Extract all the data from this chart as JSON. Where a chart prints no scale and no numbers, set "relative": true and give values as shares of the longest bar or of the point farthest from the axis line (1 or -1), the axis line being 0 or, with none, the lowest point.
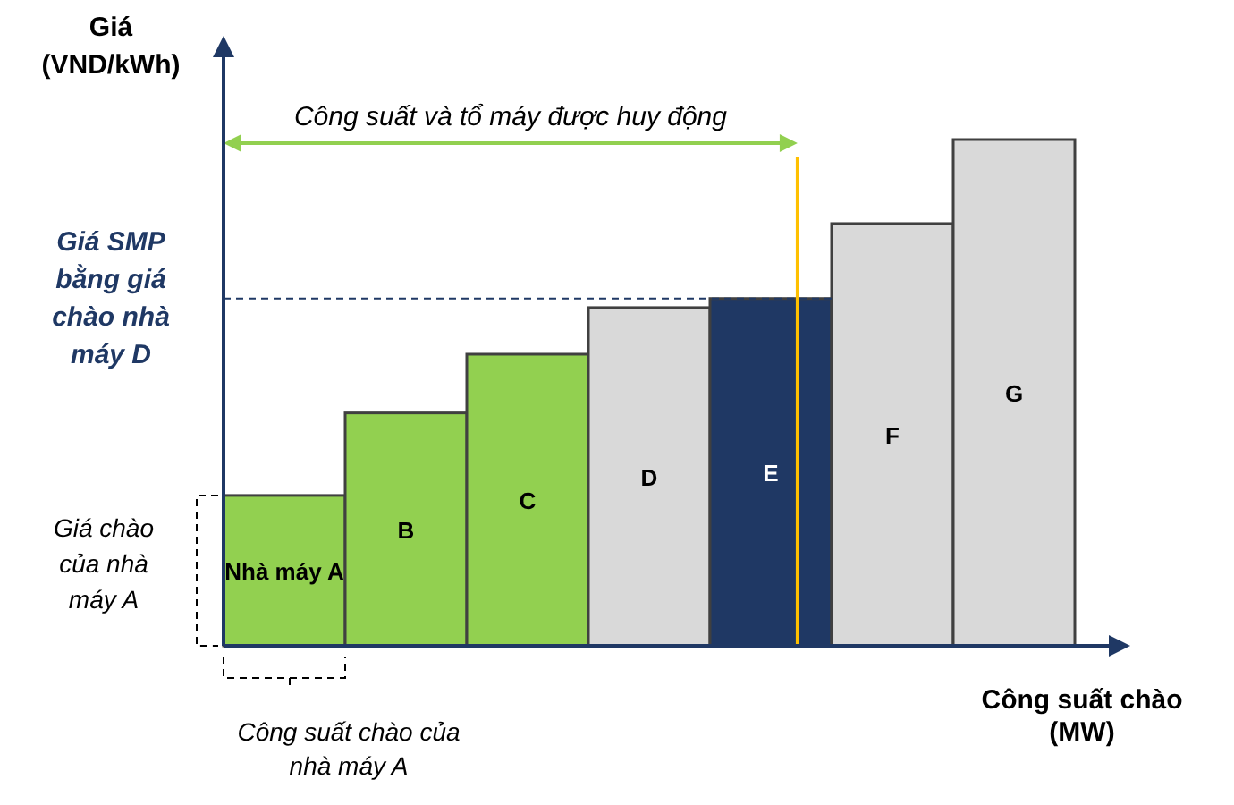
{
  "chart_data": {
    "type": "bar",
    "relative": true,
    "ylabel": "Giá\n(VND/kWh)",
    "xlabel": "Công suất chào\n(MW)",
    "categories": [
      "Nhà máy A",
      "B",
      "C",
      "D",
      "E",
      "F",
      "G"
    ],
    "values": [
      0.297,
      0.46,
      0.576,
      0.668,
      0.686,
      0.834,
      1
    ],
    "colors": [
      "#92d050",
      "#92d050",
      "#92d050",
      "#d9d9d9",
      "#1f3864",
      "#d9d9d9",
      "#d9d9d9"
    ],
    "ref_lines": [
      {
        "axis": "y",
        "value": 0.686,
        "label": "Giá SMP\nbằng giá\nchào nhà\nmáy D",
        "color": "#1f3864",
        "line_style": "dashed"
      },
      {
        "axis": "x",
        "value": "E",
        "label": "Công suất và tổ máy được huy động",
        "color": "#ffc000",
        "line_style": "solid"
      }
    ],
    "annotations": [
      "Giá chào\ncủa nhà\nmáy A",
      "Công suất chào của\nnhà máy A"
    ]
  }
}
